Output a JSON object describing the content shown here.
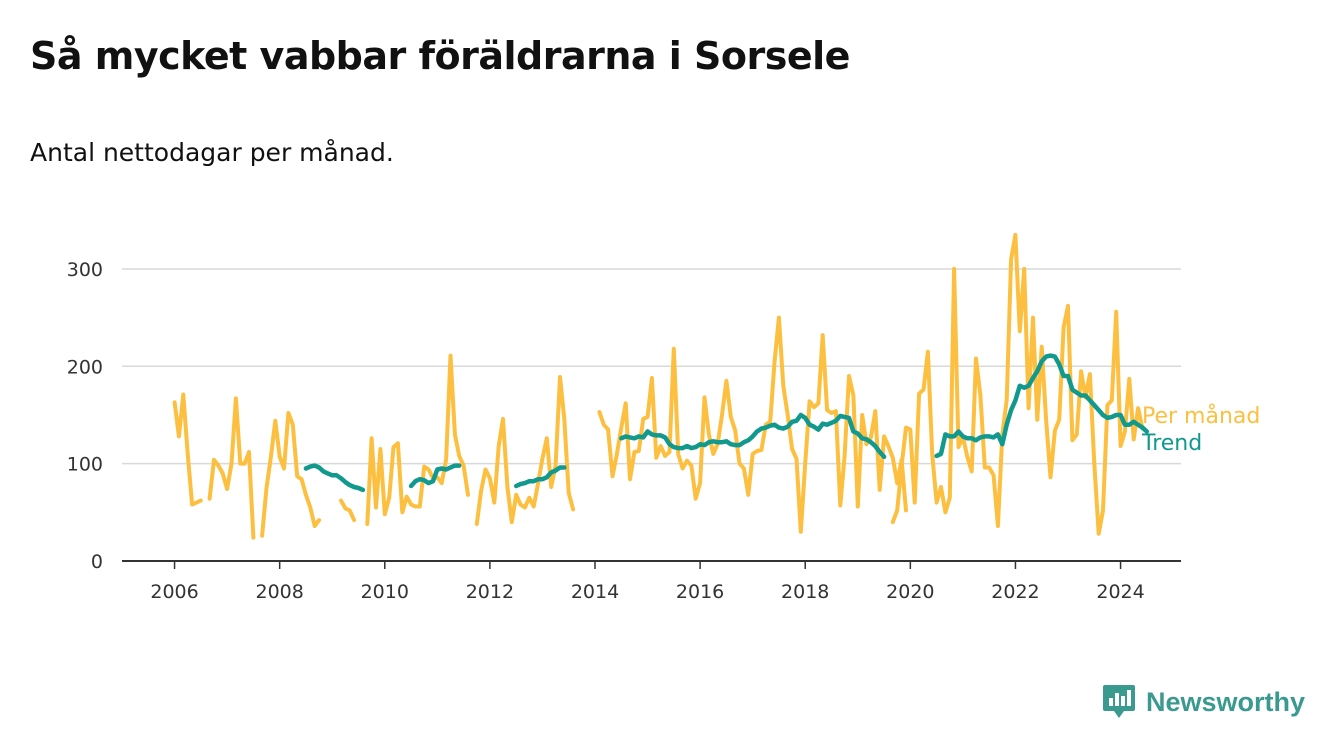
{
  "header": {
    "title": "Så mycket vabbar föräldrarna i Sorsele",
    "subtitle": "Antal nettodagar per månad."
  },
  "brand": {
    "name": "Newsworthy",
    "icon": "newsworthy-logo-icon",
    "color": "#3b9a8f"
  },
  "chart_data": {
    "type": "line",
    "x_axis": {
      "ticks": [
        "2006",
        "2008",
        "2010",
        "2012",
        "2014",
        "2016",
        "2018",
        "2020",
        "2022",
        "2024"
      ],
      "range": [
        2005.0,
        2025.15
      ]
    },
    "y_axis": {
      "ticks": [
        0,
        100,
        200,
        300
      ],
      "range": [
        0,
        340
      ]
    },
    "grid": true,
    "legend": "right, at end of lines",
    "series": [
      {
        "name": "Per månad",
        "color": "#fdbf3f",
        "segments": [
          {
            "start": "2006-01",
            "values": [
              163,
              128,
              171,
              110,
              58,
              60,
              62,
              null,
              64,
              104,
              98,
              90,
              74,
              100,
              167,
              100,
              100,
              112,
              24,
              null,
              26,
              75,
              107,
              144,
              107,
              95,
              152,
              140,
              87,
              84,
              68,
              55,
              36,
              42
            ]
          },
          {
            "start": "2009-03",
            "values": [
              62,
              54,
              52,
              42
            ]
          },
          {
            "start": "2009-09",
            "values": [
              38,
              126,
              55,
              115,
              48,
              65,
              117,
              121,
              50,
              66,
              58,
              56,
              56,
              97,
              94,
              85,
              86,
              80,
              104,
              211,
              130,
              108,
              98,
              68
            ]
          },
          {
            "start": "2011-10",
            "values": [
              38,
              72,
              94,
              85,
              60,
              118,
              146,
              76,
              40,
              68,
              58,
              55,
              65,
              56,
              80,
              105,
              126,
              76,
              98,
              189,
              146,
              70,
              53
            ]
          },
          {
            "start": "2014-02",
            "values": [
              153,
              140,
              135,
              87,
              110,
              137,
              162,
              84,
              112,
              113,
              146,
              148,
              188,
              106,
              118,
              108,
              112,
              218,
              110,
              95,
              103,
              98,
              64,
              80,
              168,
              130,
              110,
              120,
              150,
              185,
              148,
              134,
              100,
              95,
              68,
              110,
              113,
              114,
              140,
              143,
              205,
              250,
              180,
              150,
              115,
              105,
              30,
              100,
              164,
              158,
              162,
              232,
              155,
              152,
              154,
              57,
              108,
              190,
              170,
              56,
              150,
              120,
              127,
              154,
              73,
              128,
              118,
              106,
              80,
              104,
              52
            ]
          },
          {
            "start": "2019-09",
            "values": [
              40,
              52,
              98,
              137,
              135,
              60,
              172,
              176,
              215,
              110,
              60,
              76,
              50,
              65,
              300,
              117,
              128,
              107,
              92,
              208,
              170,
              96,
              96,
              88,
              36,
              130,
              165,
              310,
              335,
              236,
              300,
              157,
              250,
              145,
              220,
              145,
              86,
              134,
              145,
              240,
              262,
              124,
              130,
              195,
              168,
              192,
              100,
              28,
              52,
              160,
              165,
              256,
              118,
              133,
              187,
              125,
              157,
              136
            ]
          }
        ]
      },
      {
        "name": "Trend",
        "color": "#11998e",
        "segments": [
          {
            "start": "2008-07",
            "values": [
              95,
              97,
              98,
              96,
              92,
              90,
              88,
              88,
              85,
              81,
              78,
              76,
              75,
              73
            ]
          },
          {
            "start": "2010-07",
            "values": [
              77,
              82,
              84,
              83,
              80,
              82,
              94,
              95,
              94,
              96,
              98,
              98
            ]
          },
          {
            "start": "2012-07",
            "values": [
              77,
              79,
              80,
              82,
              82,
              84,
              84,
              86,
              91,
              93,
              96,
              96
            ]
          },
          {
            "start": "2014-07",
            "values": [
              126,
              128,
              127,
              126,
              128,
              127,
              133,
              130,
              129,
              129,
              127,
              120,
              117,
              116,
              116,
              118,
              116,
              117,
              120,
              119,
              122,
              123,
              122,
              122,
              123,
              120,
              119,
              119,
              122,
              124,
              128,
              133,
              136,
              137,
              139,
              140,
              137,
              136,
              138,
              143,
              144,
              150,
              147,
              140,
              138,
              135,
              141,
              140,
              142,
              144,
              149,
              148,
              147,
              133,
              131,
              126,
              125,
              122,
              118,
              112,
              107
            ]
          },
          {
            "start": "2020-07",
            "values": [
              108,
              110,
              130,
              128,
              128,
              133,
              128,
              126,
              126,
              124,
              127,
              128,
              128,
              127,
              130,
              120,
              140,
              155,
              165,
              180,
              178,
              180,
              188,
              195,
              205,
              210,
              211,
              210,
              202,
              190,
              190,
              176,
              173,
              170,
              170,
              165,
              160,
              155,
              150,
              147,
              148,
              150,
              150,
              140,
              140,
              143,
              140,
              137,
              133
            ]
          }
        ]
      }
    ]
  }
}
